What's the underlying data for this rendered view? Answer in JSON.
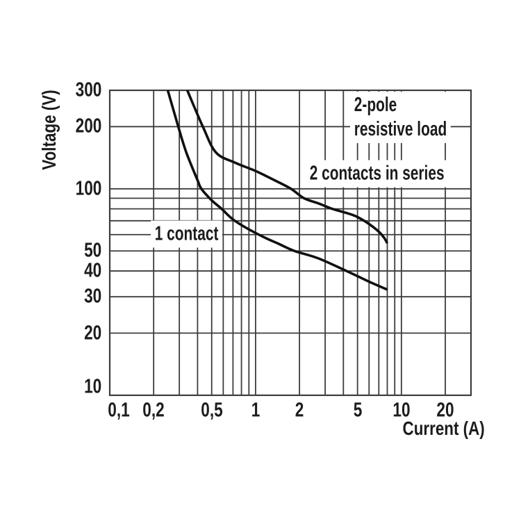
{
  "chart_data": {
    "type": "line",
    "title": "",
    "xlabel": "Current (A)",
    "ylabel": "Voltage (V)",
    "x_scale": "log",
    "y_scale": "log",
    "xlim": [
      0.1,
      30
    ],
    "ylim": [
      10,
      300
    ],
    "grid": true,
    "legend_position": "none",
    "decimal_separator": "comma",
    "colors": {
      "curve": "#101010",
      "grid": "#3c3c3c",
      "text": "#1c1c1c",
      "background": "#ffffff"
    },
    "x_ticks": {
      "values": [
        0.1,
        0.2,
        0.5,
        1,
        2,
        5,
        10,
        20
      ],
      "labels": [
        "0,1",
        "0,2",
        "0,5",
        "1",
        "2",
        "5",
        "10",
        "20"
      ]
    },
    "y_ticks": {
      "values": [
        10,
        20,
        30,
        40,
        50,
        100,
        200,
        300
      ],
      "labels": [
        "10",
        "20",
        "30",
        "40",
        "50",
        "100",
        "200",
        "300"
      ]
    },
    "x_gridlines": [
      0.2,
      0.3,
      0.4,
      0.5,
      0.6,
      0.7,
      0.8,
      0.9,
      1,
      2,
      3,
      4,
      5,
      6,
      7,
      8,
      9,
      10,
      20
    ],
    "y_gridlines": [
      20,
      30,
      40,
      50,
      60,
      70,
      80,
      90,
      100,
      200
    ],
    "series": [
      {
        "name": "1 contact",
        "points": [
          [
            0.25,
            300
          ],
          [
            0.295,
            200
          ],
          [
            0.335,
            150
          ],
          [
            0.4,
            110
          ],
          [
            0.425,
            100
          ],
          [
            0.5,
            88
          ],
          [
            0.585,
            80
          ],
          [
            0.72,
            70
          ],
          [
            1.05,
            60
          ],
          [
            1.45,
            54
          ],
          [
            1.85,
            50
          ],
          [
            2.7,
            46
          ],
          [
            4.2,
            40
          ],
          [
            6.0,
            35.5
          ],
          [
            8.0,
            32.5
          ]
        ]
      },
      {
        "name": "2 contacts in series",
        "points": [
          [
            0.34,
            300
          ],
          [
            0.435,
            200
          ],
          [
            0.535,
            150
          ],
          [
            0.72,
            134
          ],
          [
            1.0,
            122
          ],
          [
            1.35,
            110
          ],
          [
            1.75,
            100
          ],
          [
            2.15,
            90
          ],
          [
            2.7,
            85
          ],
          [
            3.35,
            80
          ],
          [
            4.3,
            76
          ],
          [
            5.0,
            73
          ],
          [
            6.0,
            67.5
          ],
          [
            7.0,
            62
          ],
          [
            7.6,
            58
          ],
          [
            8.0,
            54.5
          ]
        ]
      }
    ],
    "annotations": [
      {
        "id": "two-pole-label",
        "lines": [
          "2-pole",
          "resistive load"
        ],
        "anchor": {
          "i": 4.43,
          "v": 222
        }
      },
      {
        "id": "two-contacts-label",
        "lines": [
          "2 contacts in series"
        ],
        "anchor": {
          "i": 2.21,
          "v": 118
        }
      },
      {
        "id": "one-contact-label",
        "lines": [
          "1 contact"
        ],
        "anchor": {
          "i": 0.19,
          "v": 60.3
        }
      }
    ]
  }
}
